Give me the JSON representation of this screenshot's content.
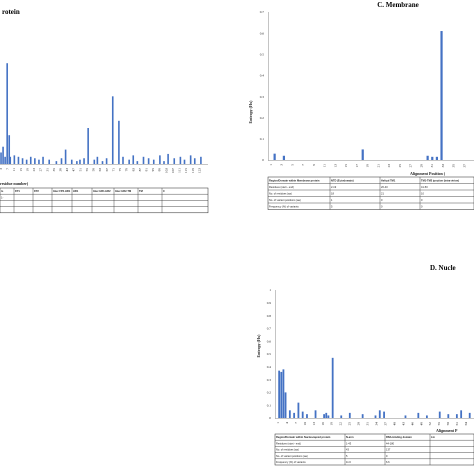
{
  "panels": {
    "b": {
      "title": "rotein",
      "xlabel": "residue number)",
      "table": {
        "headers": [
          "ts",
          "FP1",
          "FP2",
          "Inter FP2-HR1",
          "HR1",
          "Inter HR1-HR2",
          "Inter HR2-TM",
          "TM",
          "C"
        ],
        "rows": [
          [
            "1-",
            "",
            "",
            "",
            "",
            "",
            "",
            "",
            ""
          ],
          [
            "",
            "",
            "",
            "",
            "",
            "",
            "",
            "",
            ""
          ],
          [
            "",
            "",
            "",
            "",
            "",
            "",
            "",
            "",
            ""
          ]
        ]
      }
    },
    "c": {
      "title": "C. Membrane",
      "ylabel": "Entropy (Hx)",
      "xlabel": "Alignment Position (",
      "ylim": [
        0,
        0.7
      ],
      "yticks": [
        "0",
        "0.1",
        "0.2",
        "0.3",
        "0.4",
        "0.5",
        "0.6",
        "0.7"
      ],
      "table": {
        "headers": [
          "Region/Domain within Membrane protein",
          "NTD (Ectodomain)",
          "Helical TM1",
          "TM1-TM2 junction (intra-virion)"
        ],
        "rows": [
          [
            "Residues (start - end)",
            "2-19",
            "20-40",
            "41-50"
          ],
          [
            "No. of residues (aa)",
            "18",
            "21",
            "10"
          ],
          [
            "No. of variant positions (aa)",
            "1",
            "0",
            "0"
          ],
          [
            "Frequency (%) of variants",
            "5",
            "0",
            "0"
          ]
        ]
      }
    },
    "d": {
      "title": "D. Nucle",
      "ylabel": "Entropy (Hx)",
      "xlabel": "Alignment P",
      "ylim": [
        0,
        1
      ],
      "yticks": [
        "0",
        "0.1",
        "0.2",
        "0.3",
        "0.4",
        "0.5",
        "0.6",
        "0.7",
        "0.8",
        "0.9",
        "1"
      ],
      "table": {
        "headers": [
          "Region/Domain within Nucleocapsid protein",
          "N-arm",
          "RNA-binding domain",
          "Lin"
        ],
        "rows": [
          [
            "Residues (start - end)",
            "1-43",
            "44-180",
            ""
          ],
          [
            "No. of residues (aa)",
            "43",
            "137",
            ""
          ],
          [
            "No. of variant positions (aa)",
            "5",
            "9",
            ""
          ],
          [
            "Frequency (%) of variants",
            "11.6",
            "6.6",
            ""
          ]
        ]
      }
    }
  },
  "chart_data": [
    {
      "type": "bar",
      "title": "rotein",
      "xlabel": "residue number)",
      "ylim": [
        0,
        1
      ],
      "x": [
        1,
        3,
        5,
        7,
        9,
        10,
        14,
        18,
        22,
        26,
        30,
        34,
        38,
        42,
        48,
        55,
        60,
        64,
        70,
        75,
        78,
        82,
        86,
        92,
        95,
        100,
        104,
        110,
        116,
        120,
        126,
        130,
        134,
        140,
        145,
        150,
        156,
        160,
        164,
        170,
        176,
        180,
        186,
        190,
        196
      ],
      "values": [
        0.08,
        0.12,
        0.05,
        0.7,
        0.2,
        0.05,
        0.06,
        0.05,
        0.04,
        0.03,
        0.05,
        0.04,
        0.03,
        0.05,
        0.03,
        0.02,
        0.04,
        0.1,
        0.03,
        0.02,
        0.03,
        0.04,
        0.25,
        0.03,
        0.05,
        0.02,
        0.04,
        0.47,
        0.3,
        0.05,
        0.03,
        0.06,
        0.02,
        0.05,
        0.04,
        0.03,
        0.06,
        0.02,
        0.07,
        0.04,
        0.05,
        0.03,
        0.06,
        0.04,
        0.05
      ],
      "xticks": [
        "3",
        "7",
        "11",
        "15",
        "19",
        "23",
        "27",
        "31",
        "35",
        "39",
        "43",
        "47",
        "51",
        "55",
        "59",
        "63",
        "67",
        "71",
        "75",
        "79",
        "83",
        "87",
        "91",
        "95",
        "99",
        "103",
        "107",
        "111",
        "115",
        "119",
        "123"
      ]
    },
    {
      "type": "bar",
      "title": "C. Membrane",
      "xlabel": "Alignment Position (",
      "ylabel": "Entropy (Hx)",
      "ylim": [
        0,
        0.7
      ],
      "x": [
        1,
        3,
        20,
        34,
        35,
        36,
        37
      ],
      "values": [
        0.03,
        0.02,
        0.05,
        0.02,
        0.015,
        0.015,
        0.61
      ],
      "xticks": [
        "1",
        "3",
        "5",
        "7",
        "9",
        "11",
        "13",
        "15",
        "17",
        "19",
        "21",
        "23",
        "25",
        "27",
        "29",
        "31",
        "33",
        "35",
        "37"
      ]
    },
    {
      "type": "bar",
      "title": "D. Nucle",
      "xlabel": "Alignment P",
      "ylabel": "Entropy (Hx)",
      "ylim": [
        0,
        1
      ],
      "x": [
        1,
        2,
        3,
        4,
        6,
        8,
        10,
        12,
        14,
        18,
        22,
        23,
        24,
        26,
        30,
        34,
        40,
        46,
        48,
        50,
        60,
        66,
        70,
        76,
        80,
        84,
        86,
        90
      ],
      "values": [
        0.37,
        0.36,
        0.38,
        0.2,
        0.06,
        0.04,
        0.12,
        0.05,
        0.03,
        0.06,
        0.03,
        0.04,
        0.02,
        0.47,
        0.02,
        0.04,
        0.03,
        0.02,
        0.06,
        0.05,
        0.02,
        0.04,
        0.02,
        0.05,
        0.03,
        0.03,
        0.06,
        0.04
      ],
      "xticks": [
        "1",
        "4",
        "7",
        "10",
        "13",
        "16",
        "19",
        "22",
        "25",
        "28",
        "31",
        "34",
        "37",
        "40",
        "43",
        "46",
        "49",
        "52",
        "55",
        "58",
        "61",
        "64"
      ]
    }
  ]
}
